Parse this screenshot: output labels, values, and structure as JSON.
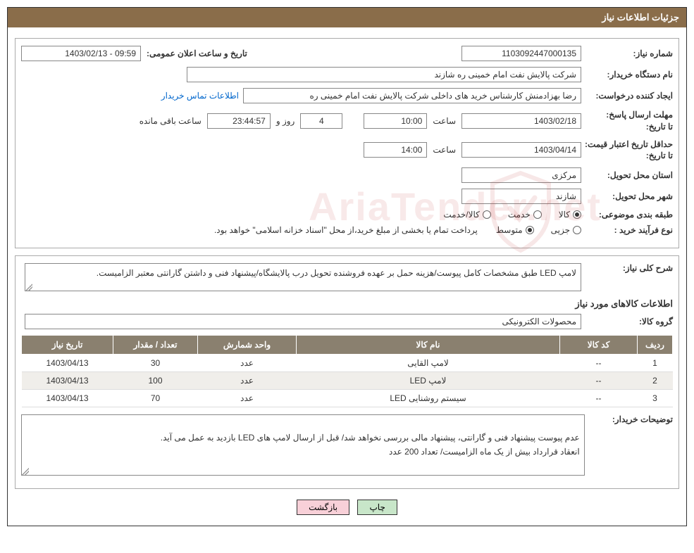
{
  "header": {
    "title": "جزئیات اطلاعات نیاز"
  },
  "info": {
    "need_no_label": "شماره نیاز:",
    "need_no": "1103092447000135",
    "announce_label": "تاریخ و ساعت اعلان عمومی:",
    "announce_value": "09:59 - 1403/02/13",
    "buyer_org_label": "نام دستگاه خریدار:",
    "buyer_org": "شرکت پالایش نفت امام خمینی  ره  شازند",
    "requester_label": "ایجاد کننده درخواست:",
    "requester": "رضا بهزادمنش کارشناس خرید های داخلی  شرکت پالایش نفت امام خمینی  ره",
    "contact_link": "اطلاعات تماس خریدار",
    "deadline_label1": "مهلت ارسال پاسخ:",
    "deadline_label2": "تا تاریخ:",
    "deadline_date": "1403/02/18",
    "time_label": "ساعت",
    "deadline_time": "10:00",
    "days_remaining": "4",
    "days_word": "روز و",
    "hours_remaining": "23:44:57",
    "remaining_text": "ساعت باقی مانده",
    "validity_label1": "حداقل تاریخ اعتبار قیمت:",
    "validity_label2": "تا تاریخ:",
    "validity_date": "1403/04/14",
    "validity_time": "14:00",
    "province_label": "استان محل تحویل:",
    "province": "مرکزی",
    "city_label": "شهر محل تحویل:",
    "city": "شازند",
    "topic_label": "طبقه بندی موضوعی:",
    "topic_opts": [
      "کالا",
      "خدمت",
      "کالا/خدمت"
    ],
    "topic_selected": 0,
    "process_label": "نوع فرآیند خرید :",
    "process_opts": [
      "جزیی",
      "متوسط"
    ],
    "process_selected": 1,
    "process_note": "پرداخت تمام یا بخشی از مبلغ خرید،از محل \"اسناد خزانه اسلامی\" خواهد بود."
  },
  "details": {
    "desc_label": "شرح کلی نیاز:",
    "desc": "لامپ LED طبق مشخصات کامل پیوست/هزینه حمل بر عهده فروشنده تحویل درب پالایشگاه/پیشنهاد فنی و داشتن گارانتی معتبر الزامیست.",
    "items_title": "اطلاعات کالاهای مورد نیاز",
    "group_label": "گروه کالا:",
    "group": "محصولات الکترونیکی",
    "table": {
      "headers": [
        "ردیف",
        "کد کالا",
        "نام کالا",
        "واحد شمارش",
        "تعداد / مقدار",
        "تاریخ نیاز"
      ],
      "col_widths": [
        "50px",
        "110px",
        "auto",
        "140px",
        "120px",
        "130px"
      ],
      "rows": [
        [
          "1",
          "--",
          "لامپ القایی",
          "عدد",
          "30",
          "1403/04/13"
        ],
        [
          "2",
          "--",
          "لامپ LED",
          "عدد",
          "100",
          "1403/04/13"
        ],
        [
          "3",
          "--",
          "سیستم روشنایی LED",
          "عدد",
          "70",
          "1403/04/13"
        ]
      ]
    },
    "buyer_notes_label": "توضیحات خریدار:",
    "buyer_notes": "عدم پیوست پیشنهاد فنی و گارانتی، پیشنهاد مالی بررسی نخواهد شد/ قبل از ارسال لامپ های LED بازدید به عمل می آید.\nانعقاد قرارداد بیش از یک ماه الزامیست/ تعداد 200 عدد"
  },
  "buttons": {
    "print": "چاپ",
    "back": "بازگشت"
  },
  "style": {
    "header_bg": "#8a6d4a",
    "table_header_bg": "#8a806f",
    "btn_green": "#c8e6c9",
    "btn_pink": "#f8d0d8"
  }
}
